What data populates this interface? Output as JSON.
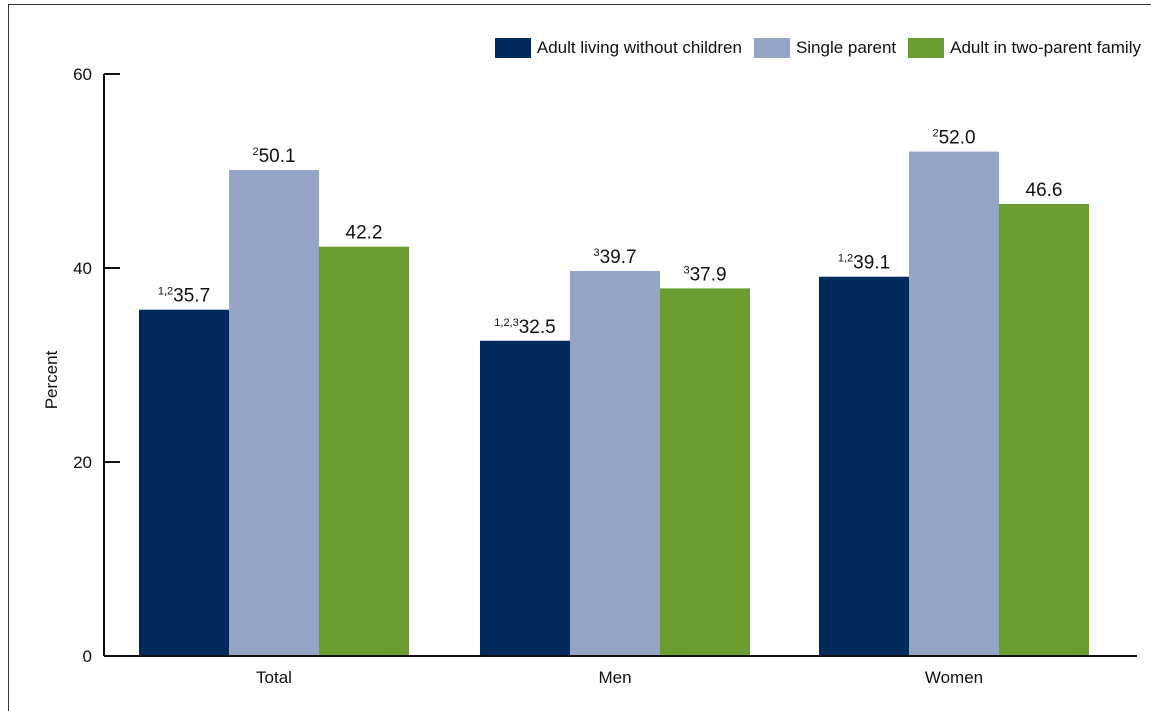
{
  "chart_data": {
    "type": "bar",
    "categories": [
      "Total",
      "Men",
      "Women"
    ],
    "series": [
      {
        "name": "Adult living without children",
        "color": "#002a5c",
        "values": [
          35.7,
          32.5,
          39.1
        ],
        "footnotes": [
          "1,2",
          "1,2,3",
          "1,2"
        ]
      },
      {
        "name": "Single parent",
        "color": "#96a5c6",
        "values": [
          50.1,
          39.7,
          52.0
        ],
        "footnotes": [
          "2",
          "3",
          "2"
        ]
      },
      {
        "name": "Adult in two-parent family",
        "color": "#6b9c31",
        "values": [
          42.2,
          37.9,
          46.6
        ],
        "footnotes": [
          "",
          "3",
          ""
        ]
      }
    ],
    "ylabel": "Percent",
    "xlabel": "",
    "ylim": [
      0,
      60
    ],
    "yticks": [
      0,
      20,
      40,
      60
    ],
    "grid": false,
    "legend_position": "top-right"
  }
}
